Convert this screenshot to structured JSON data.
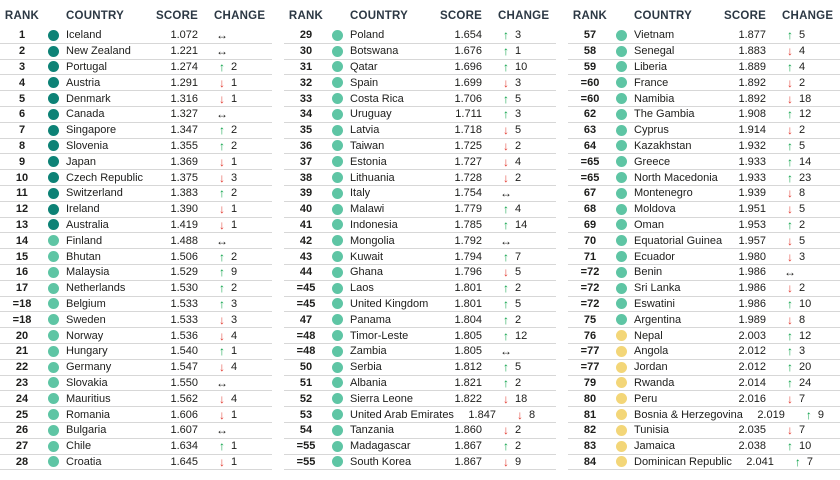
{
  "header": {
    "rank": "RANK",
    "country": "COUNTRY",
    "score": "SCORE",
    "change": "CHANGE"
  },
  "colors": {
    "tier_very_high": "#0d8276",
    "tier_high": "#5ec5a4",
    "tier_medium": "#f3d678",
    "up": "#0aa147",
    "down": "#e23d32",
    "same": "#1d1d1b",
    "header_text": "#2c3844",
    "row_line": "#d7d7d7"
  },
  "icons": {
    "up": "↑",
    "down": "↓",
    "same": "↔"
  },
  "columns": [
    {
      "rows": [
        {
          "rank": "1",
          "country": "Iceland",
          "score": "1.072",
          "dir": "same",
          "delta": "",
          "tier": "very_high"
        },
        {
          "rank": "2",
          "country": "New Zealand",
          "score": "1.221",
          "dir": "same",
          "delta": "",
          "tier": "very_high"
        },
        {
          "rank": "3",
          "country": "Portugal",
          "score": "1.274",
          "dir": "up",
          "delta": "2",
          "tier": "very_high"
        },
        {
          "rank": "4",
          "country": "Austria",
          "score": "1.291",
          "dir": "down",
          "delta": "1",
          "tier": "very_high"
        },
        {
          "rank": "5",
          "country": "Denmark",
          "score": "1.316",
          "dir": "down",
          "delta": "1",
          "tier": "very_high"
        },
        {
          "rank": "6",
          "country": "Canada",
          "score": "1.327",
          "dir": "same",
          "delta": "",
          "tier": "very_high"
        },
        {
          "rank": "7",
          "country": "Singapore",
          "score": "1.347",
          "dir": "up",
          "delta": "2",
          "tier": "very_high"
        },
        {
          "rank": "8",
          "country": "Slovenia",
          "score": "1.355",
          "dir": "up",
          "delta": "2",
          "tier": "very_high"
        },
        {
          "rank": "9",
          "country": "Japan",
          "score": "1.369",
          "dir": "down",
          "delta": "1",
          "tier": "very_high"
        },
        {
          "rank": "10",
          "country": "Czech Republic",
          "score": "1.375",
          "dir": "down",
          "delta": "3",
          "tier": "very_high"
        },
        {
          "rank": "11",
          "country": "Switzerland",
          "score": "1.383",
          "dir": "up",
          "delta": "2",
          "tier": "very_high"
        },
        {
          "rank": "12",
          "country": "Ireland",
          "score": "1.390",
          "dir": "down",
          "delta": "1",
          "tier": "very_high"
        },
        {
          "rank": "13",
          "country": "Australia",
          "score": "1.419",
          "dir": "down",
          "delta": "1",
          "tier": "very_high"
        },
        {
          "rank": "14",
          "country": "Finland",
          "score": "1.488",
          "dir": "same",
          "delta": "",
          "tier": "high"
        },
        {
          "rank": "15",
          "country": "Bhutan",
          "score": "1.506",
          "dir": "up",
          "delta": "2",
          "tier": "high"
        },
        {
          "rank": "16",
          "country": "Malaysia",
          "score": "1.529",
          "dir": "up",
          "delta": "9",
          "tier": "high"
        },
        {
          "rank": "17",
          "country": "Netherlands",
          "score": "1.530",
          "dir": "up",
          "delta": "2",
          "tier": "high"
        },
        {
          "rank": "=18",
          "country": "Belgium",
          "score": "1.533",
          "dir": "up",
          "delta": "3",
          "tier": "high"
        },
        {
          "rank": "=18",
          "country": "Sweden",
          "score": "1.533",
          "dir": "down",
          "delta": "3",
          "tier": "high"
        },
        {
          "rank": "20",
          "country": "Norway",
          "score": "1.536",
          "dir": "down",
          "delta": "4",
          "tier": "high"
        },
        {
          "rank": "21",
          "country": "Hungary",
          "score": "1.540",
          "dir": "up",
          "delta": "1",
          "tier": "high"
        },
        {
          "rank": "22",
          "country": "Germany",
          "score": "1.547",
          "dir": "down",
          "delta": "4",
          "tier": "high"
        },
        {
          "rank": "23",
          "country": "Slovakia",
          "score": "1.550",
          "dir": "same",
          "delta": "",
          "tier": "high"
        },
        {
          "rank": "24",
          "country": "Mauritius",
          "score": "1.562",
          "dir": "down",
          "delta": "4",
          "tier": "high"
        },
        {
          "rank": "25",
          "country": "Romania",
          "score": "1.606",
          "dir": "down",
          "delta": "1",
          "tier": "high"
        },
        {
          "rank": "26",
          "country": "Bulgaria",
          "score": "1.607",
          "dir": "same",
          "delta": "",
          "tier": "high"
        },
        {
          "rank": "27",
          "country": "Chile",
          "score": "1.634",
          "dir": "up",
          "delta": "1",
          "tier": "high"
        },
        {
          "rank": "28",
          "country": "Croatia",
          "score": "1.645",
          "dir": "down",
          "delta": "1",
          "tier": "high"
        }
      ]
    },
    {
      "rows": [
        {
          "rank": "29",
          "country": "Poland",
          "score": "1.654",
          "dir": "up",
          "delta": "3",
          "tier": "high"
        },
        {
          "rank": "30",
          "country": "Botswana",
          "score": "1.676",
          "dir": "up",
          "delta": "1",
          "tier": "high"
        },
        {
          "rank": "31",
          "country": "Qatar",
          "score": "1.696",
          "dir": "up",
          "delta": "10",
          "tier": "high"
        },
        {
          "rank": "32",
          "country": "Spain",
          "score": "1.699",
          "dir": "down",
          "delta": "3",
          "tier": "high"
        },
        {
          "rank": "33",
          "country": "Costa Rica",
          "score": "1.706",
          "dir": "up",
          "delta": "5",
          "tier": "high"
        },
        {
          "rank": "34",
          "country": "Uruguay",
          "score": "1.711",
          "dir": "up",
          "delta": "3",
          "tier": "high"
        },
        {
          "rank": "35",
          "country": "Latvia",
          "score": "1.718",
          "dir": "down",
          "delta": "5",
          "tier": "high"
        },
        {
          "rank": "36",
          "country": "Taiwan",
          "score": "1.725",
          "dir": "down",
          "delta": "2",
          "tier": "high"
        },
        {
          "rank": "37",
          "country": "Estonia",
          "score": "1.727",
          "dir": "down",
          "delta": "4",
          "tier": "high"
        },
        {
          "rank": "38",
          "country": "Lithuania",
          "score": "1.728",
          "dir": "down",
          "delta": "2",
          "tier": "high"
        },
        {
          "rank": "39",
          "country": "Italy",
          "score": "1.754",
          "dir": "same",
          "delta": "",
          "tier": "high"
        },
        {
          "rank": "40",
          "country": "Malawi",
          "score": "1.779",
          "dir": "up",
          "delta": "4",
          "tier": "high"
        },
        {
          "rank": "41",
          "country": "Indonesia",
          "score": "1.785",
          "dir": "up",
          "delta": "14",
          "tier": "high"
        },
        {
          "rank": "42",
          "country": "Mongolia",
          "score": "1.792",
          "dir": "same",
          "delta": "",
          "tier": "high"
        },
        {
          "rank": "43",
          "country": "Kuwait",
          "score": "1.794",
          "dir": "up",
          "delta": "7",
          "tier": "high"
        },
        {
          "rank": "44",
          "country": "Ghana",
          "score": "1.796",
          "dir": "down",
          "delta": "5",
          "tier": "high"
        },
        {
          "rank": "=45",
          "country": "Laos",
          "score": "1.801",
          "dir": "up",
          "delta": "2",
          "tier": "high"
        },
        {
          "rank": "=45",
          "country": "United Kingdom",
          "score": "1.801",
          "dir": "up",
          "delta": "5",
          "tier": "high"
        },
        {
          "rank": "47",
          "country": "Panama",
          "score": "1.804",
          "dir": "up",
          "delta": "2",
          "tier": "high"
        },
        {
          "rank": "=48",
          "country": "Timor-Leste",
          "score": "1.805",
          "dir": "up",
          "delta": "12",
          "tier": "high"
        },
        {
          "rank": "=48",
          "country": "Zambia",
          "score": "1.805",
          "dir": "same",
          "delta": "",
          "tier": "high"
        },
        {
          "rank": "50",
          "country": "Serbia",
          "score": "1.812",
          "dir": "up",
          "delta": "5",
          "tier": "high"
        },
        {
          "rank": "51",
          "country": "Albania",
          "score": "1.821",
          "dir": "up",
          "delta": "2",
          "tier": "high"
        },
        {
          "rank": "52",
          "country": "Sierra Leone",
          "score": "1.822",
          "dir": "down",
          "delta": "18",
          "tier": "high"
        },
        {
          "rank": "53",
          "country": "United Arab Emirates",
          "score": "1.847",
          "dir": "down",
          "delta": "8",
          "tier": "high"
        },
        {
          "rank": "54",
          "country": "Tanzania",
          "score": "1.860",
          "dir": "down",
          "delta": "2",
          "tier": "high"
        },
        {
          "rank": "=55",
          "country": "Madagascar",
          "score": "1.867",
          "dir": "up",
          "delta": "2",
          "tier": "high"
        },
        {
          "rank": "=55",
          "country": "South Korea",
          "score": "1.867",
          "dir": "down",
          "delta": "9",
          "tier": "high"
        }
      ]
    },
    {
      "rows": [
        {
          "rank": "57",
          "country": "Vietnam",
          "score": "1.877",
          "dir": "up",
          "delta": "5",
          "tier": "high"
        },
        {
          "rank": "58",
          "country": "Senegal",
          "score": "1.883",
          "dir": "down",
          "delta": "4",
          "tier": "high"
        },
        {
          "rank": "59",
          "country": "Liberia",
          "score": "1.889",
          "dir": "up",
          "delta": "4",
          "tier": "high"
        },
        {
          "rank": "=60",
          "country": "France",
          "score": "1.892",
          "dir": "down",
          "delta": "2",
          "tier": "high"
        },
        {
          "rank": "=60",
          "country": "Namibia",
          "score": "1.892",
          "dir": "down",
          "delta": "18",
          "tier": "high"
        },
        {
          "rank": "62",
          "country": "The Gambia",
          "score": "1.908",
          "dir": "up",
          "delta": "12",
          "tier": "high"
        },
        {
          "rank": "63",
          "country": "Cyprus",
          "score": "1.914",
          "dir": "down",
          "delta": "2",
          "tier": "high"
        },
        {
          "rank": "64",
          "country": "Kazakhstan",
          "score": "1.932",
          "dir": "up",
          "delta": "5",
          "tier": "high"
        },
        {
          "rank": "=65",
          "country": "Greece",
          "score": "1.933",
          "dir": "up",
          "delta": "14",
          "tier": "high"
        },
        {
          "rank": "=65",
          "country": "North Macedonia",
          "score": "1.933",
          "dir": "up",
          "delta": "23",
          "tier": "high"
        },
        {
          "rank": "67",
          "country": "Montenegro",
          "score": "1.939",
          "dir": "down",
          "delta": "8",
          "tier": "high"
        },
        {
          "rank": "68",
          "country": "Moldova",
          "score": "1.951",
          "dir": "down",
          "delta": "5",
          "tier": "high"
        },
        {
          "rank": "69",
          "country": "Oman",
          "score": "1.953",
          "dir": "up",
          "delta": "2",
          "tier": "high"
        },
        {
          "rank": "70",
          "country": "Equatorial Guinea",
          "score": "1.957",
          "dir": "down",
          "delta": "5",
          "tier": "high"
        },
        {
          "rank": "71",
          "country": "Ecuador",
          "score": "1.980",
          "dir": "down",
          "delta": "3",
          "tier": "high"
        },
        {
          "rank": "=72",
          "country": "Benin",
          "score": "1.986",
          "dir": "same",
          "delta": "",
          "tier": "high"
        },
        {
          "rank": "=72",
          "country": "Sri Lanka",
          "score": "1.986",
          "dir": "down",
          "delta": "2",
          "tier": "high"
        },
        {
          "rank": "=72",
          "country": "Eswatini",
          "score": "1.986",
          "dir": "up",
          "delta": "10",
          "tier": "high"
        },
        {
          "rank": "75",
          "country": "Argentina",
          "score": "1.989",
          "dir": "down",
          "delta": "8",
          "tier": "high"
        },
        {
          "rank": "76",
          "country": "Nepal",
          "score": "2.003",
          "dir": "up",
          "delta": "12",
          "tier": "medium"
        },
        {
          "rank": "=77",
          "country": "Angola",
          "score": "2.012",
          "dir": "up",
          "delta": "3",
          "tier": "medium"
        },
        {
          "rank": "=77",
          "country": "Jordan",
          "score": "2.012",
          "dir": "up",
          "delta": "20",
          "tier": "medium"
        },
        {
          "rank": "79",
          "country": "Rwanda",
          "score": "2.014",
          "dir": "up",
          "delta": "24",
          "tier": "medium"
        },
        {
          "rank": "80",
          "country": "Peru",
          "score": "2.016",
          "dir": "down",
          "delta": "7",
          "tier": "medium"
        },
        {
          "rank": "81",
          "country": "Bosnia & Herzegovina",
          "score": "2.019",
          "dir": "up",
          "delta": "9",
          "tier": "medium"
        },
        {
          "rank": "82",
          "country": "Tunisia",
          "score": "2.035",
          "dir": "down",
          "delta": "7",
          "tier": "medium"
        },
        {
          "rank": "83",
          "country": "Jamaica",
          "score": "2.038",
          "dir": "up",
          "delta": "10",
          "tier": "medium"
        },
        {
          "rank": "84",
          "country": "Dominican Republic",
          "score": "2.041",
          "dir": "up",
          "delta": "7",
          "tier": "medium"
        }
      ]
    }
  ]
}
